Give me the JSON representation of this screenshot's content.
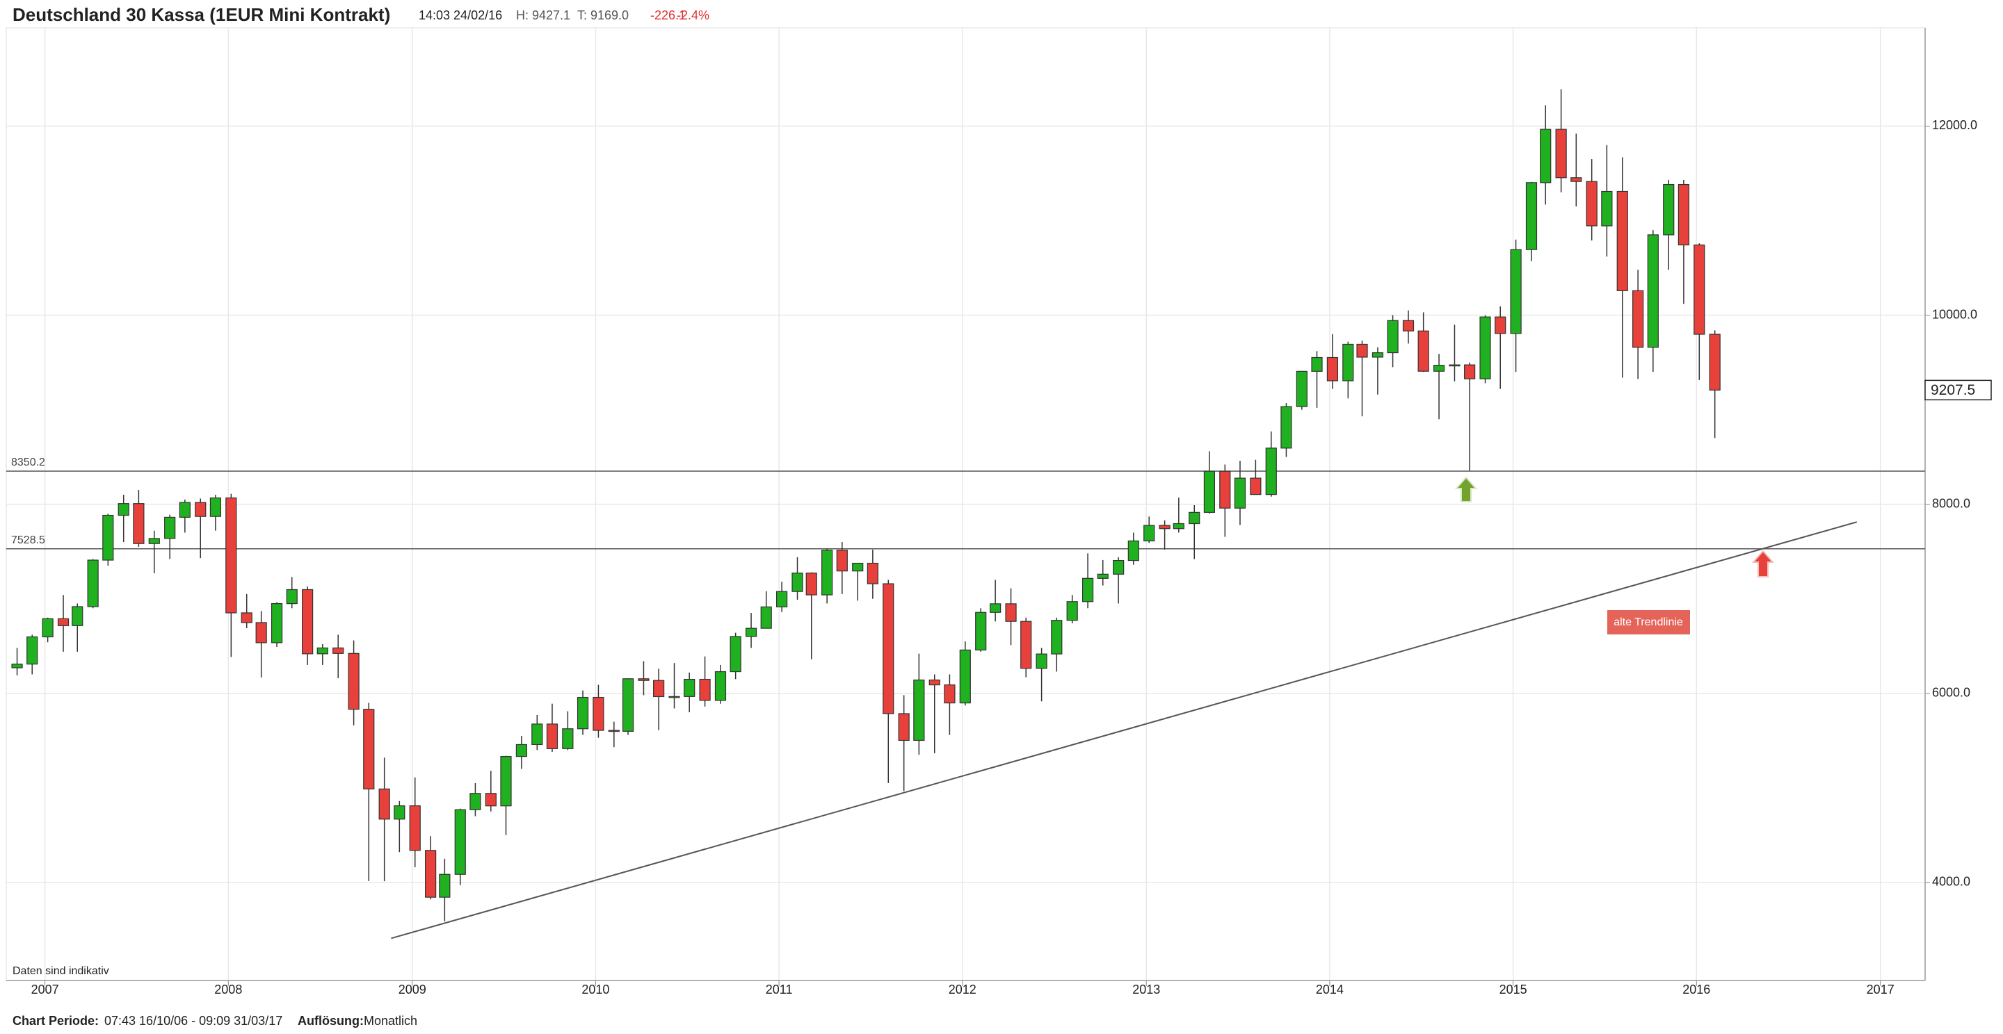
{
  "header": {
    "title": "Deutschland 30 Kassa (1EUR Mini Kontrakt)",
    "time": "14:03 24/02/16",
    "high": "H: 9427.1",
    "low": "T: 9169.0",
    "change": "-226.1",
    "change_pct": "-2.4%"
  },
  "footer": {
    "period_label": "Chart Periode:",
    "period": "07:43 16/10/06 - 09:09 31/03/17",
    "resolution_label": "Auflösung:",
    "resolution": "Monatlich",
    "note": "Daten sind indikativ"
  },
  "chart_data": {
    "type": "candlestick",
    "up_color": "#1fb11f",
    "down_color": "#e8413b",
    "grid": true,
    "xlim": [
      "2006-10-16",
      "2017-03-31"
    ],
    "xticks": [
      2007,
      2008,
      2009,
      2010,
      2011,
      2012,
      2013,
      2014,
      2015,
      2016,
      2017
    ],
    "ylim": [
      2962,
      13040
    ],
    "yticks": [
      {
        "value": 4000,
        "label": "4000.0"
      },
      {
        "value": 6000,
        "label": "6000.0"
      },
      {
        "value": 8000,
        "label": "8000.0"
      },
      {
        "value": 10000,
        "label": "10000.0"
      },
      {
        "value": 12000,
        "label": "12000.0"
      }
    ],
    "x": [
      "2006-11",
      "2006-12",
      "2007-01",
      "2007-02",
      "2007-03",
      "2007-04",
      "2007-05",
      "2007-06",
      "2007-07",
      "2007-08",
      "2007-09",
      "2007-10",
      "2007-11",
      "2007-12",
      "2008-01",
      "2008-02",
      "2008-03",
      "2008-04",
      "2008-05",
      "2008-06",
      "2008-07",
      "2008-08",
      "2008-09",
      "2008-10",
      "2008-11",
      "2008-12",
      "2009-01",
      "2009-02",
      "2009-03",
      "2009-04",
      "2009-05",
      "2009-06",
      "2009-07",
      "2009-08",
      "2009-09",
      "2009-10",
      "2009-11",
      "2009-12",
      "2010-01",
      "2010-02",
      "2010-03",
      "2010-04",
      "2010-05",
      "2010-06",
      "2010-07",
      "2010-08",
      "2010-09",
      "2010-10",
      "2010-11",
      "2010-12",
      "2011-01",
      "2011-02",
      "2011-03",
      "2011-04",
      "2011-05",
      "2011-06",
      "2011-07",
      "2011-08",
      "2011-09",
      "2011-10",
      "2011-11",
      "2011-12",
      "2012-01",
      "2012-02",
      "2012-03",
      "2012-04",
      "2012-05",
      "2012-06",
      "2012-07",
      "2012-08",
      "2012-09",
      "2012-10",
      "2012-11",
      "2012-12",
      "2013-01",
      "2013-02",
      "2013-03",
      "2013-04",
      "2013-05",
      "2013-06",
      "2013-07",
      "2013-08",
      "2013-09",
      "2013-10",
      "2013-11",
      "2013-12",
      "2014-01",
      "2014-02",
      "2014-03",
      "2014-04",
      "2014-05",
      "2014-06",
      "2014-07",
      "2014-08",
      "2014-09",
      "2014-10",
      "2014-11",
      "2014-12",
      "2015-01",
      "2015-02",
      "2015-03",
      "2015-04",
      "2015-05",
      "2015-06",
      "2015-07",
      "2015-08",
      "2015-09",
      "2015-10",
      "2015-11",
      "2015-12",
      "2016-01",
      "2016-02"
    ],
    "open": [
      6270,
      6309,
      6597,
      6789,
      6716,
      6917,
      7409,
      7883,
      8007,
      7584,
      7638,
      7862,
      8019,
      7871,
      8067,
      6851,
      6748,
      6535,
      6949,
      7097,
      6418,
      6480,
      6422,
      5831,
      4988,
      4669,
      4810,
      4338,
      3843,
      4085,
      4769,
      4941,
      4809,
      5332,
      5458,
      5675,
      5415,
      5625,
      5957,
      5608,
      5598,
      6154,
      6136,
      5965,
      5966,
      6148,
      5925,
      6229,
      6601,
      6688,
      6914,
      7077,
      7272,
      7041,
      7514,
      7294,
      7376,
      7159,
      5785,
      5502,
      6141,
      6089,
      5898,
      6458,
      6856,
      6947,
      6761,
      6264,
      6416,
      6772,
      6970,
      7216,
      7260,
      7405,
      7612,
      7776,
      7742,
      7795,
      7914,
      8349,
      7959,
      8276,
      8103,
      8594,
      9033,
      9406,
      9552,
      9306,
      9692,
      9556,
      9603,
      9943,
      9833,
      9407,
      9470,
      9474,
      9327,
      9981,
      9806,
      10694,
      11402,
      11966,
      11454,
      11414,
      10945,
      11309,
      10259,
      9660,
      10850,
      11382,
      10743,
      9798
    ],
    "high": [
      6480,
      6620,
      6800,
      7040,
      6950,
      7420,
      7900,
      8100,
      8151,
      7720,
      7890,
      8050,
      8060,
      8100,
      8110,
      7050,
      6870,
      6965,
      7230,
      7130,
      6520,
      6620,
      6560,
      5900,
      5320,
      4860,
      5110,
      4490,
      4250,
      4780,
      5050,
      5180,
      5340,
      5550,
      5770,
      5890,
      5810,
      6030,
      6090,
      5700,
      6160,
      6340,
      6260,
      6320,
      6220,
      6390,
      6300,
      6640,
      6850,
      7080,
      7180,
      7440,
      7280,
      7530,
      7600,
      7360,
      7520,
      7200,
      5980,
      6420,
      6200,
      6200,
      6550,
      6900,
      7200,
      7110,
      6800,
      6480,
      6800,
      7040,
      7480,
      7410,
      7440,
      7700,
      7870,
      7830,
      8070,
      7990,
      8560,
      8420,
      8460,
      8470,
      8770,
      9070,
      9410,
      9620,
      9800,
      9720,
      9730,
      9660,
      10000,
      10050,
      10030,
      9590,
      9900,
      9500,
      10000,
      10093,
      10800,
      11410,
      12220,
      12390,
      11920,
      11650,
      11800,
      11670,
      10480,
      10900,
      11430,
      11430,
      10760,
      9840
    ],
    "low": [
      6190,
      6200,
      6540,
      6440,
      6440,
      6900,
      7350,
      7600,
      7550,
      7270,
      7420,
      7700,
      7430,
      7720,
      6384,
      6690,
      6167,
      6490,
      6900,
      6300,
      6300,
      6160,
      5660,
      4014,
      4012,
      4320,
      4160,
      3820,
      3588,
      3970,
      4700,
      4750,
      4500,
      5200,
      5400,
      5380,
      5400,
      5560,
      5530,
      5430,
      5560,
      5980,
      5610,
      5840,
      5800,
      5860,
      5890,
      6150,
      6480,
      6690,
      6860,
      6990,
      6360,
      6950,
      7050,
      6980,
      7000,
      5051,
      4966,
      5350,
      5366,
      5560,
      5870,
      6440,
      6760,
      6510,
      6170,
      5915,
      6230,
      6740,
      6900,
      7140,
      6950,
      7360,
      7590,
      7520,
      7700,
      7420,
      7900,
      7655,
      7780,
      8100,
      8080,
      8500,
      9000,
      9020,
      9220,
      9120,
      8930,
      9160,
      9450,
      9700,
      9400,
      8900,
      9300,
      8355,
      9280,
      9220,
      9400,
      10570,
      11170,
      11300,
      11150,
      10790,
      10620,
      9338,
      9325,
      9400,
      10480,
      10120,
      9314,
      8700
    ],
    "close": [
      6309,
      6597,
      6789,
      6716,
      6917,
      7409,
      7883,
      8007,
      7584,
      7638,
      7862,
      8019,
      7871,
      8067,
      6851,
      6748,
      6535,
      6949,
      7097,
      6418,
      6480,
      6422,
      5831,
      4988,
      4669,
      4810,
      4338,
      3843,
      4085,
      4769,
      4941,
      4809,
      5332,
      5458,
      5675,
      5415,
      5625,
      5957,
      5608,
      5598,
      6154,
      6136,
      5965,
      5966,
      6148,
      5925,
      6229,
      6601,
      6688,
      6914,
      7077,
      7272,
      7041,
      7514,
      7294,
      7376,
      7159,
      5785,
      5502,
      6141,
      6089,
      5898,
      6458,
      6856,
      6947,
      6761,
      6264,
      6416,
      6772,
      6970,
      7216,
      7260,
      7405,
      7612,
      7776,
      7742,
      7795,
      7914,
      8349,
      7959,
      8276,
      8103,
      8594,
      9033,
      9406,
      9552,
      9306,
      9692,
      9556,
      9603,
      9943,
      9833,
      9407,
      9470,
      9474,
      9327,
      9981,
      9806,
      10694,
      11402,
      11966,
      11454,
      11414,
      10945,
      11309,
      10259,
      9660,
      10850,
      11382,
      10743,
      9798,
      9207.5
    ],
    "levels": [
      8350.2,
      7528.5
    ],
    "trendline": {
      "x": [
        "2008-11-20",
        "2016-11-15"
      ],
      "values": [
        3408,
        7812
      ]
    },
    "annotation": "alte Trendlinie"
  }
}
